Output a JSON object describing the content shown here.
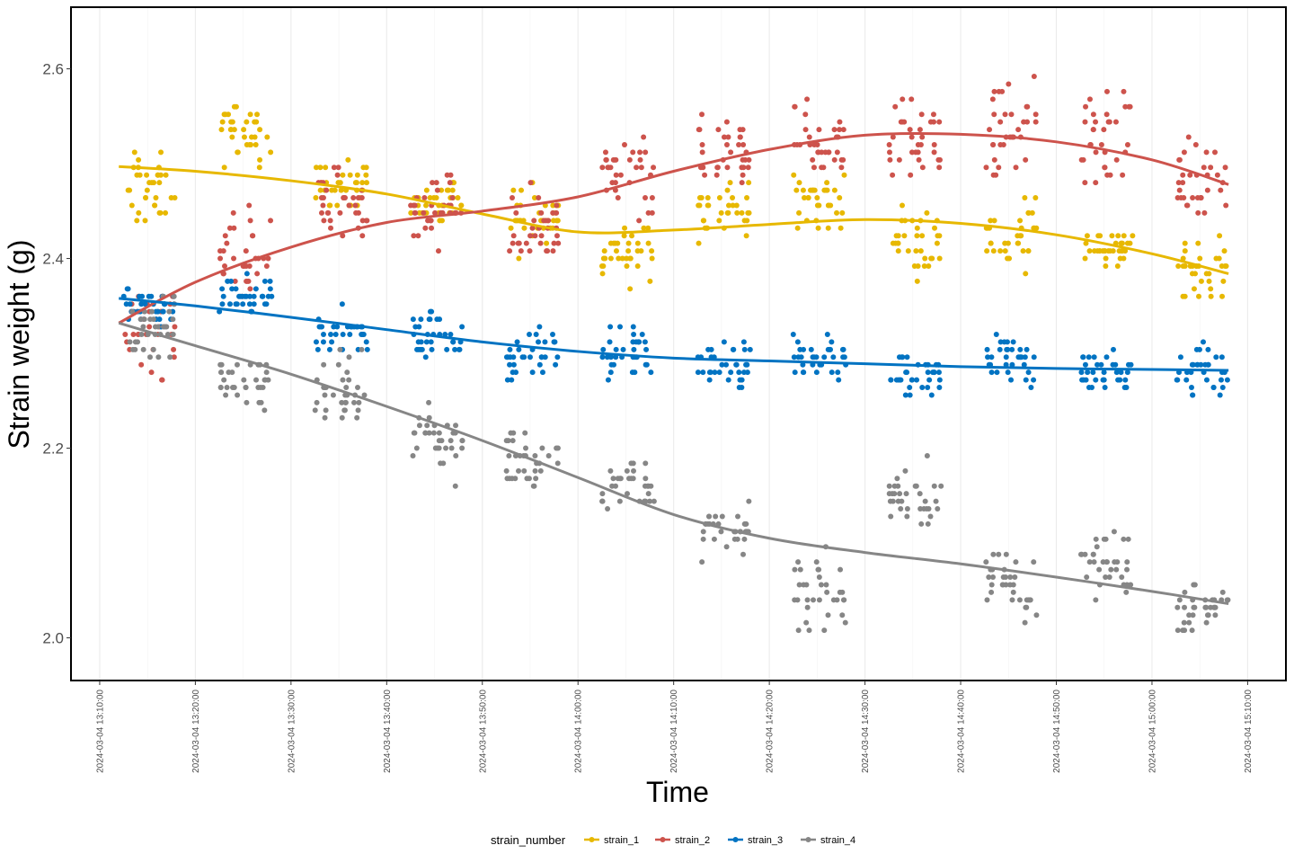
{
  "chart_data": {
    "type": "scatter",
    "title": "",
    "xlabel": "Time",
    "ylabel": "Strain weight (g)",
    "x_ticks": [
      "2024-03-04 13:10:00",
      "2024-03-04 13:20:00",
      "2024-03-04 13:30:00",
      "2024-03-04 13:40:00",
      "2024-03-04 13:50:00",
      "2024-03-04 14:00:00",
      "2024-03-04 14:10:00",
      "2024-03-04 14:20:00",
      "2024-03-04 14:30:00",
      "2024-03-04 14:40:00",
      "2024-03-04 14:50:00",
      "2024-03-04 15:00:00",
      "2024-03-04 15:10:00"
    ],
    "y_ticks": [
      "2.0",
      "2.2",
      "2.4",
      "2.6"
    ],
    "xlim": [
      "2024-03-04 13:07:00",
      "2024-03-04 15:14:00"
    ],
    "ylim": [
      1.955,
      2.665
    ],
    "grid": "vertical major and minor, light grey",
    "legend": {
      "title": "strain_number",
      "position": "bottom"
    },
    "point_clusters": {
      "description": "12 measurement batches, each ~5.5 min long",
      "batch_start_times": [
        "2024-03-04 13:12:30",
        "2024-03-04 13:22:30",
        "2024-03-04 13:32:30",
        "2024-03-04 13:42:30",
        "2024-03-04 13:52:30",
        "2024-03-04 14:02:30",
        "2024-03-04 14:12:30",
        "2024-03-04 14:22:30",
        "2024-03-04 14:32:30",
        "2024-03-04 14:42:30",
        "2024-03-04 14:52:30",
        "2024-03-04 15:02:30"
      ],
      "batch_duration_min": 5.5
    },
    "series": [
      {
        "name": "strain_1",
        "color": "#E7B800",
        "cluster_centers": [
          2.47,
          2.53,
          2.48,
          2.46,
          2.44,
          2.41,
          2.45,
          2.46,
          2.42,
          2.43,
          2.41,
          2.39
        ],
        "cluster_spread": [
          0.045,
          0.035,
          0.025,
          0.025,
          0.035,
          0.035,
          0.035,
          0.035,
          0.035,
          0.04,
          0.02,
          0.03
        ],
        "trend": {
          "x": [
            "2024-03-04 13:12:00",
            "2024-03-04 13:20:00",
            "2024-03-04 13:30:00",
            "2024-03-04 13:40:00",
            "2024-03-04 13:50:00",
            "2024-03-04 14:00:00",
            "2024-03-04 14:10:00",
            "2024-03-04 14:20:00",
            "2024-03-04 14:30:00",
            "2024-03-04 14:40:00",
            "2024-03-04 14:50:00",
            "2024-03-04 15:00:00",
            "2024-03-04 15:08:00"
          ],
          "y": [
            2.497,
            2.492,
            2.482,
            2.468,
            2.447,
            2.428,
            2.43,
            2.436,
            2.441,
            2.437,
            2.425,
            2.405,
            2.384
          ]
        }
      },
      {
        "name": "strain_2",
        "color": "#CD534C",
        "cluster_centers": [
          2.33,
          2.4,
          2.46,
          2.45,
          2.43,
          2.48,
          2.51,
          2.52,
          2.52,
          2.53,
          2.53,
          2.48
        ],
        "cluster_spread": [
          0.06,
          0.05,
          0.04,
          0.04,
          0.04,
          0.05,
          0.04,
          0.05,
          0.05,
          0.07,
          0.06,
          0.05
        ],
        "trend": {
          "x": [
            "2024-03-04 13:12:00",
            "2024-03-04 13:20:00",
            "2024-03-04 13:30:00",
            "2024-03-04 13:40:00",
            "2024-03-04 13:50:00",
            "2024-03-04 14:00:00",
            "2024-03-04 14:10:00",
            "2024-03-04 14:20:00",
            "2024-03-04 14:30:00",
            "2024-03-04 14:40:00",
            "2024-03-04 14:50:00",
            "2024-03-04 15:00:00",
            "2024-03-04 15:08:00"
          ],
          "y": [
            2.332,
            2.375,
            2.412,
            2.438,
            2.45,
            2.465,
            2.492,
            2.515,
            2.53,
            2.531,
            2.523,
            2.504,
            2.478
          ]
        }
      },
      {
        "name": "strain_3",
        "color": "#0073C2",
        "cluster_centers": [
          2.35,
          2.36,
          2.32,
          2.32,
          2.3,
          2.3,
          2.29,
          2.3,
          2.28,
          2.29,
          2.28,
          2.28
        ],
        "cluster_spread": [
          0.02,
          0.02,
          0.03,
          0.03,
          0.03,
          0.03,
          0.03,
          0.03,
          0.03,
          0.03,
          0.03,
          0.03
        ],
        "trend": {
          "x": [
            "2024-03-04 13:12:00",
            "2024-03-04 13:20:00",
            "2024-03-04 13:30:00",
            "2024-03-04 13:40:00",
            "2024-03-04 13:50:00",
            "2024-03-04 14:00:00",
            "2024-03-04 14:10:00",
            "2024-03-04 14:20:00",
            "2024-03-04 14:30:00",
            "2024-03-04 14:40:00",
            "2024-03-04 14:50:00",
            "2024-03-04 15:00:00",
            "2024-03-04 15:08:00"
          ],
          "y": [
            2.358,
            2.35,
            2.338,
            2.325,
            2.312,
            2.302,
            2.295,
            2.292,
            2.289,
            2.286,
            2.284,
            2.283,
            2.282
          ]
        }
      },
      {
        "name": "strain_4",
        "color": "#868686",
        "cluster_centers": [
          2.33,
          2.27,
          2.26,
          2.21,
          2.19,
          2.16,
          2.11,
          2.05,
          2.15,
          2.05,
          2.08,
          2.03
        ],
        "cluster_spread": [
          0.05,
          0.03,
          0.04,
          0.04,
          0.04,
          0.03,
          0.03,
          0.04,
          0.04,
          0.04,
          0.04,
          0.03
        ],
        "trend": {
          "x": [
            "2024-03-04 13:12:00",
            "2024-03-04 13:20:00",
            "2024-03-04 13:30:00",
            "2024-03-04 13:40:00",
            "2024-03-04 13:50:00",
            "2024-03-04 14:00:00",
            "2024-03-04 14:10:00",
            "2024-03-04 14:20:00",
            "2024-03-04 14:30:00",
            "2024-03-04 14:40:00",
            "2024-03-04 14:50:00",
            "2024-03-04 15:00:00",
            "2024-03-04 15:08:00"
          ],
          "y": [
            2.332,
            2.308,
            2.278,
            2.244,
            2.208,
            2.169,
            2.13,
            2.105,
            2.09,
            2.078,
            2.064,
            2.049,
            2.036
          ]
        }
      }
    ]
  }
}
